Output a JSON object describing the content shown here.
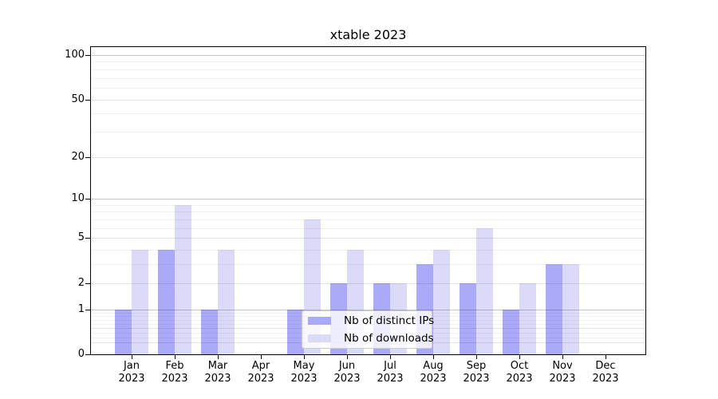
{
  "chart_data": {
    "type": "bar",
    "title": "xtable 2023",
    "year": "2023",
    "categories": [
      "Jan",
      "Feb",
      "Mar",
      "Apr",
      "May",
      "Jun",
      "Jul",
      "Aug",
      "Sep",
      "Oct",
      "Nov",
      "Dec"
    ],
    "series": [
      {
        "name": "Nb of distinct IPs",
        "color": "#aaaaf8",
        "values": [
          1,
          4,
          1,
          0,
          1,
          2,
          2,
          3,
          2,
          1,
          3,
          0
        ]
      },
      {
        "name": "Nb of downloads",
        "color": "#dbdaf9",
        "values": [
          4,
          9,
          4,
          0,
          7,
          4,
          2,
          4,
          6,
          2,
          3,
          0
        ]
      }
    ],
    "y_axis": {
      "scale": "log1p",
      "ticks": [
        0,
        1,
        2,
        5,
        10,
        20,
        50,
        100
      ],
      "range": [
        0,
        100
      ]
    },
    "x_axis": {
      "tick_label_format": "month-over-year"
    },
    "grid": true,
    "legend_position": "lower-center"
  }
}
